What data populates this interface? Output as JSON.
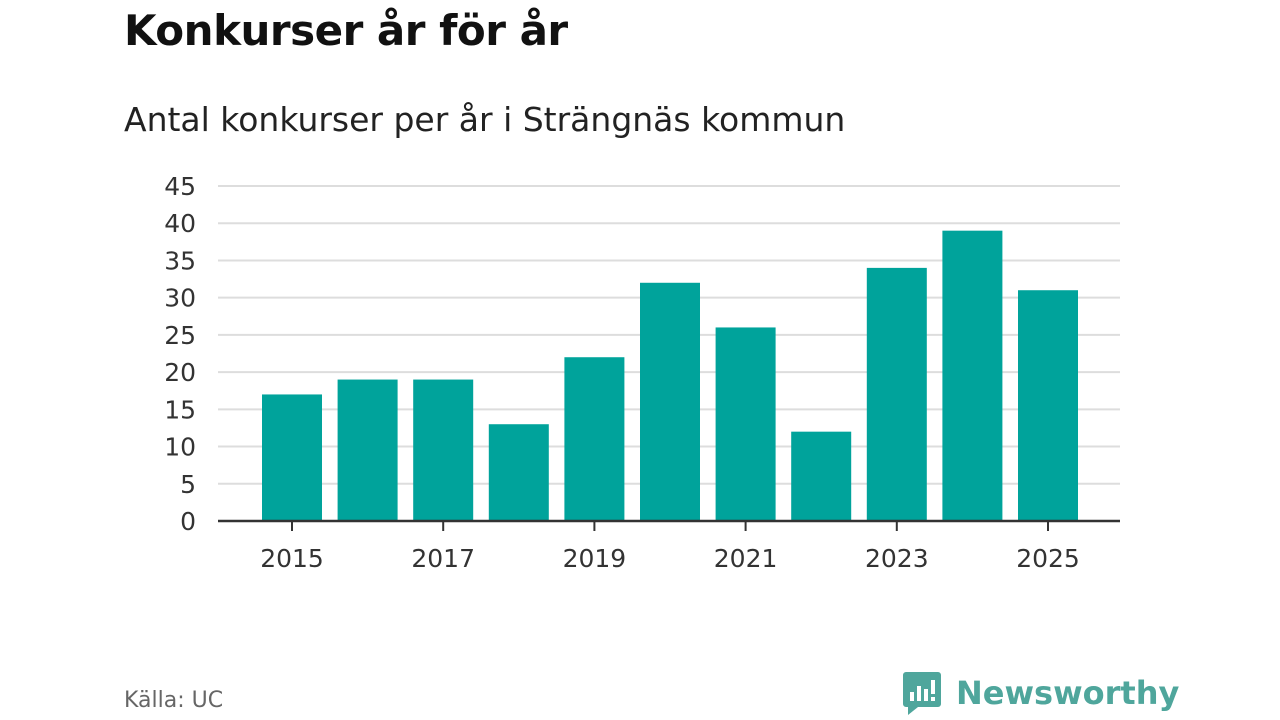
{
  "title": "Konkurser år för år",
  "subtitle": "Antal konkurser per år i Strängnäs kommun",
  "source": "Källa: UC",
  "brand": {
    "name": "Newsworthy",
    "icon": "newsworthy-logo-icon",
    "color": "#4fa69c"
  },
  "colors": {
    "bar": "#00a39b",
    "grid": "#dddddd",
    "axis": "#333333"
  },
  "chart_data": {
    "type": "bar",
    "title": "Konkurser år för år",
    "subtitle": "Antal konkurser per år i Strängnäs kommun",
    "xlabel": "",
    "ylabel": "",
    "categories": [
      "2015",
      "2016",
      "2017",
      "2018",
      "2019",
      "2020",
      "2021",
      "2022",
      "2023",
      "2024",
      "2025"
    ],
    "values": [
      17,
      19,
      19,
      13,
      22,
      32,
      26,
      12,
      34,
      39,
      31
    ],
    "ylim": [
      0,
      45
    ],
    "yticks": [
      "0",
      "5",
      "10",
      "15",
      "20",
      "25",
      "30",
      "35",
      "40",
      "45"
    ],
    "xtick_labels": [
      "2015",
      "2017",
      "2019",
      "2021",
      "2023",
      "2025"
    ],
    "grid": true,
    "legend": "none"
  }
}
